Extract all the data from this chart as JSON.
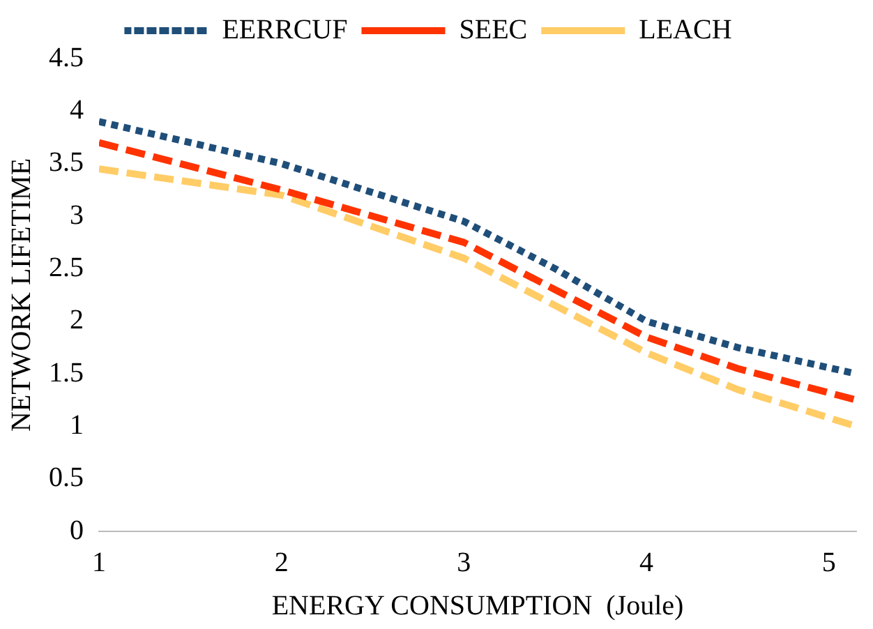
{
  "chart_data": {
    "type": "line",
    "xlabel": "ENERGY CONSUMPTION  (Joule)",
    "ylabel": "NETWORK LIFETIME",
    "legend": "top",
    "grid": false,
    "marker": "none",
    "xlim": [
      1,
      5.15
    ],
    "xticks": [
      1,
      2,
      3,
      4,
      5
    ],
    "ylim": [
      0,
      4.5
    ],
    "yticks": [
      0,
      0.5,
      1,
      1.5,
      2,
      2.5,
      3,
      3.5,
      4,
      4.5
    ],
    "series": [
      {
        "name": "EERRCUF",
        "color": "#1f4e79",
        "line_style": "dotted",
        "x": [
          1,
          2,
          3,
          3.5,
          4,
          4.5,
          5.15
        ],
        "values": [
          3.9,
          3.5,
          2.95,
          2.5,
          2.0,
          1.75,
          1.5
        ]
      },
      {
        "name": "SEEC",
        "color": "#ff3300",
        "line_style": "dashed",
        "x": [
          1,
          2,
          3,
          3.5,
          4,
          4.5,
          5.15
        ],
        "values": [
          3.7,
          3.25,
          2.75,
          2.3,
          1.85,
          1.55,
          1.25
        ]
      },
      {
        "name": "LEACH",
        "color": "#ffcc66",
        "line_style": "dashed",
        "x": [
          1,
          2,
          3,
          3.5,
          4,
          4.5,
          5.15
        ],
        "values": [
          3.45,
          3.2,
          2.6,
          2.15,
          1.7,
          1.35,
          1.0
        ]
      }
    ]
  }
}
